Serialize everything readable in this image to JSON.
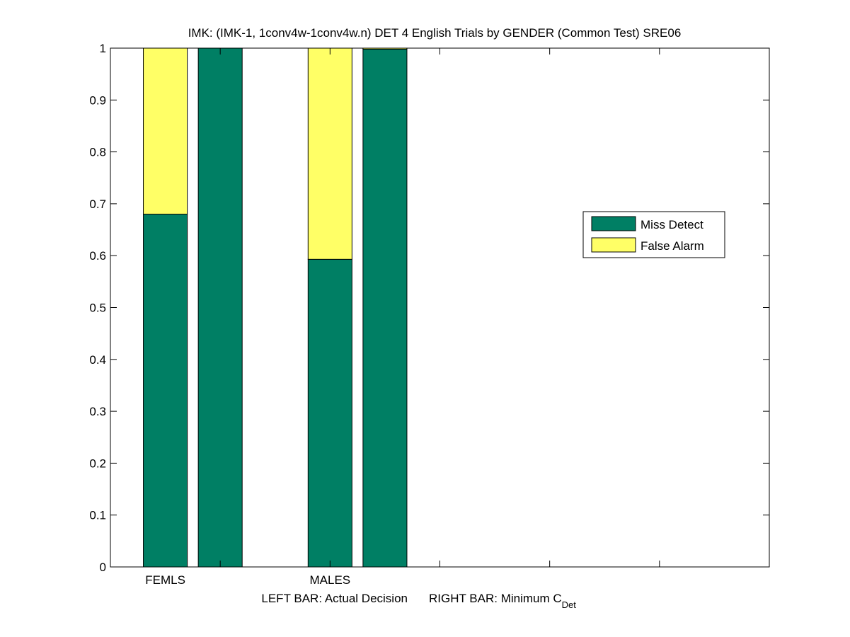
{
  "chart_data": {
    "type": "bar",
    "stacked": true,
    "title": "IMK: (IMK-1, 1conv4w-1conv4w.n) DET 4 English Trials by GENDER (Common Test) SRE06",
    "xlabel": {
      "left": "LEFT BAR: Actual Decision",
      "right_prefix": "RIGHT BAR: Minimum C",
      "right_subscript": "Det"
    },
    "ylabel": "",
    "ylim": [
      0,
      1
    ],
    "yticks": [
      "0",
      "0.1",
      "0.2",
      "0.3",
      "0.4",
      "0.5",
      "0.6",
      "0.7",
      "0.8",
      "0.9",
      "1"
    ],
    "categories": [
      "FEMLS",
      "MALES"
    ],
    "bars": [
      {
        "category": "FEMLS",
        "kind": "Actual Decision",
        "miss_detect": 0.68,
        "false_alarm": 0.32
      },
      {
        "category": "FEMLS",
        "kind": "Minimum CDet",
        "miss_detect": 1.0,
        "false_alarm": 0.0
      },
      {
        "category": "MALES",
        "kind": "Actual Decision",
        "miss_detect": 0.593,
        "false_alarm": 0.407
      },
      {
        "category": "MALES",
        "kind": "Minimum CDet",
        "miss_detect": 0.998,
        "false_alarm": 0.002
      }
    ],
    "series": [
      {
        "name": "Miss Detect",
        "color": "#007F64"
      },
      {
        "name": "False Alarm",
        "color": "#FFFF66"
      }
    ],
    "legend_position": "right",
    "grid": false
  }
}
